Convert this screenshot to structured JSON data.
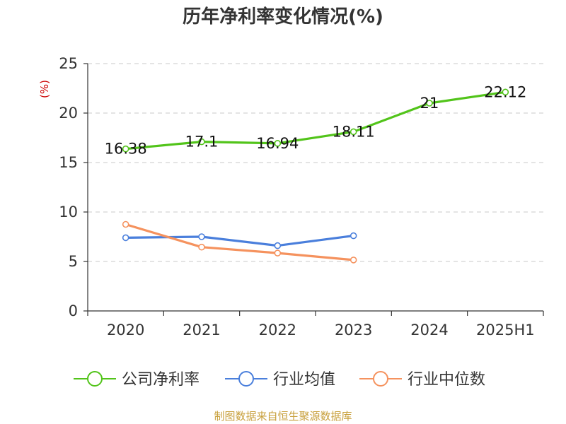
{
  "chart_data": {
    "type": "line",
    "title": "历年净利率变化情况(%)",
    "ylabel": "(%)",
    "xlabel": "",
    "categories": [
      "2020",
      "2021",
      "2022",
      "2023",
      "2024",
      "2025H1"
    ],
    "ylim": [
      0,
      25
    ],
    "yticks": [
      0,
      5,
      10,
      15,
      20,
      25
    ],
    "grid": true,
    "legend_position": "bottom",
    "series": [
      {
        "name": "公司净利率",
        "color": "#52c41a",
        "values": [
          16.38,
          17.1,
          16.94,
          18.11,
          21,
          22.12
        ],
        "labels": [
          "16.38",
          "17.1",
          "16.94",
          "18.11",
          "21",
          "22.12"
        ],
        "show_labels": true
      },
      {
        "name": "行业均值",
        "color": "#4a7fdc",
        "values": [
          7.4,
          7.5,
          6.6,
          7.6,
          null,
          null
        ],
        "show_labels": false
      },
      {
        "name": "行业中位数",
        "color": "#f5925e",
        "values": [
          8.75,
          6.45,
          5.85,
          5.15,
          null,
          null
        ],
        "show_labels": false
      }
    ]
  },
  "footer": {
    "source": "制图数据来自恒生聚源数据库"
  }
}
